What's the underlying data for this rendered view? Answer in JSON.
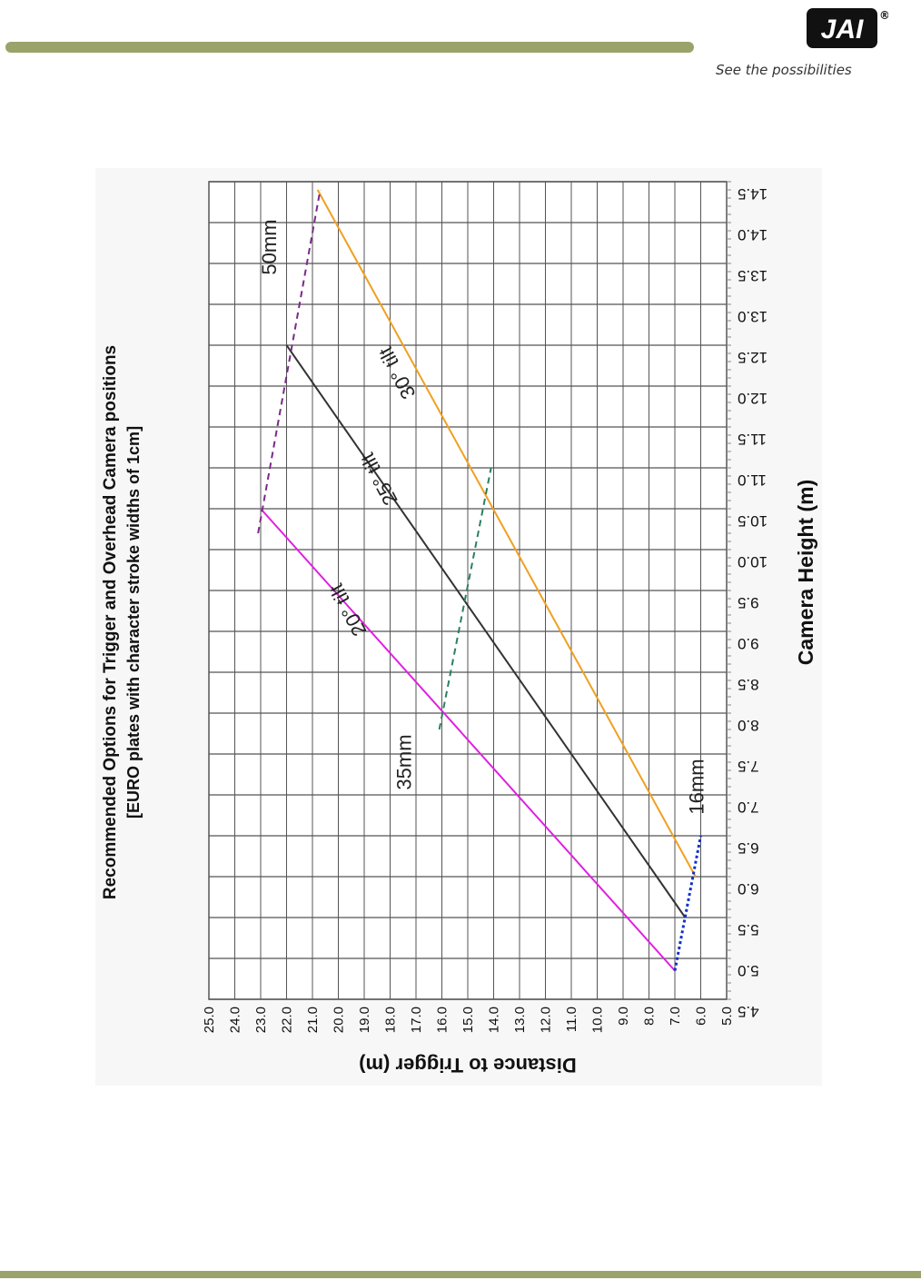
{
  "header": {
    "logo_text": "JAI",
    "registered_mark": "®",
    "tagline": "See the possibilities"
  },
  "colors": {
    "accent_bar": "#9aa36a",
    "tilt_20": "#e020e0",
    "tilt_25": "#333333",
    "tilt_30": "#f0a020",
    "lens_16": "#1030c8",
    "lens_35": "#2a8060",
    "lens_50": "#7a2a8a",
    "grid": "#555555"
  },
  "chart_data": {
    "type": "line",
    "orientation": "rotated 90 degrees clockwise",
    "title": "Recommended Options for Trigger and Overhead Camera positions",
    "subtitle": "[EURO plates with character stroke widths of 1cm]",
    "xlabel": "Camera Height (m)",
    "ylabel": "Distance to Trigger (m)",
    "xlim": [
      4.5,
      14.5
    ],
    "ylim": [
      5.0,
      25.0
    ],
    "x_ticks": [
      "4.5",
      "5.0",
      "5.5",
      "6.0",
      "6.5",
      "7.0",
      "7.5",
      "8.0",
      "8.5",
      "9.0",
      "9.5",
      "10.0",
      "10.5",
      "11.0",
      "11.5",
      "12.0",
      "12.5",
      "13.0",
      "13.5",
      "14.0",
      "14.5"
    ],
    "y_ticks": [
      "5.0",
      "6.0",
      "7.0",
      "8.0",
      "9.0",
      "10.0",
      "11.0",
      "12.0",
      "13.0",
      "14.0",
      "15.0",
      "16.0",
      "17.0",
      "18.0",
      "19.0",
      "20.0",
      "21.0",
      "22.0",
      "23.0",
      "24.0",
      "25.0"
    ],
    "series": [
      {
        "name": "20° tilt",
        "label": "20° tilt",
        "style": "solid",
        "color_key": "tilt_20",
        "points": [
          [
            4.85,
            7.0
          ],
          [
            10.5,
            23.0
          ]
        ],
        "label_at": [
          9.3,
          19.4
        ]
      },
      {
        "name": "25° tilt",
        "label": "25° tilt",
        "style": "solid",
        "color_key": "tilt_25",
        "points": [
          [
            5.5,
            6.6
          ],
          [
            12.5,
            22.0
          ]
        ],
        "label_at": [
          10.9,
          18.2
        ]
      },
      {
        "name": "30° tilt",
        "label": "30° tilt",
        "style": "solid",
        "color_key": "tilt_30",
        "points": [
          [
            6.0,
            6.2
          ],
          [
            14.4,
            20.8
          ]
        ],
        "label_at": [
          12.2,
          17.5
        ]
      },
      {
        "name": "16mm",
        "label": "16mm",
        "style": "dotted",
        "color_key": "lens_16",
        "points": [
          [
            4.85,
            7.0
          ],
          [
            6.5,
            6.0
          ]
        ],
        "label_at": [
          7.1,
          5.9
        ]
      },
      {
        "name": "35mm",
        "label": "35mm",
        "style": "dashed",
        "color_key": "lens_35",
        "points": [
          [
            7.8,
            16.1
          ],
          [
            11.0,
            14.1
          ]
        ],
        "label_at": [
          7.4,
          17.2
        ]
      },
      {
        "name": "50mm",
        "label": "50mm",
        "style": "dashed",
        "color_key": "lens_50",
        "points": [
          [
            10.2,
            23.1
          ],
          [
            14.4,
            20.7
          ]
        ],
        "label_at": [
          13.7,
          22.4
        ]
      }
    ]
  }
}
